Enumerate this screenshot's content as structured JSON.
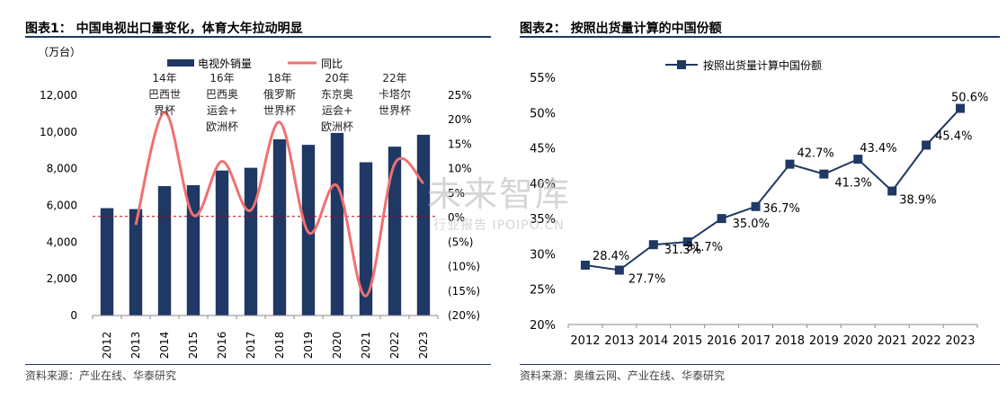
{
  "left": {
    "title": "图表1：  中国电视出口量变化，体育大年拉动明显",
    "unit_label": "（万台）",
    "source": "资料来源：产业在线、华泰研究",
    "legend_bar": "电视外销量",
    "legend_line": "同比",
    "annotations": [
      "14年\n巴西世\n界杯",
      "16年\n巴西奥\n运会+\n欧洲杯",
      "18年\n俄罗斯\n世界杯",
      "20年\n东京奥\n运会+\n欧洲杯",
      "22年\n卡塔尔\n世界杯"
    ],
    "colors": {
      "bar": "#1f3864",
      "line": "#f07070",
      "refline": "#c00000"
    }
  },
  "right": {
    "title": "图表2：  按照出货量计算的中国份额",
    "source": "资料来源：奥维云网、产业在线、华泰研究",
    "legend": "按照出货量计算中国份额",
    "colors": {
      "line": "#1f3864"
    }
  },
  "watermark": {
    "line1": "未来智库",
    "line2": "行业报告 IPOIPO.CN"
  },
  "chart_data": [
    {
      "type": "bar",
      "categories": [
        "2012",
        "2013",
        "2014",
        "2015",
        "2016",
        "2017",
        "2018",
        "2019",
        "2020",
        "2021",
        "2022",
        "2023"
      ],
      "series": [
        {
          "name": "电视外销量",
          "values": [
            5850,
            5800,
            7050,
            7100,
            7900,
            8050,
            9600,
            9300,
            9950,
            8350,
            9200,
            9850
          ]
        },
        {
          "name": "同比",
          "values": [
            null,
            -1.5,
            21.5,
            0.5,
            11.5,
            1.5,
            19.5,
            -3.0,
            6.5,
            -16.0,
            11.0,
            7.0
          ]
        }
      ],
      "ylim": [
        0,
        12000
      ],
      "y2lim": [
        -20,
        25
      ],
      "yticks": [
        "0",
        "2,000",
        "4,000",
        "6,000",
        "8,000",
        "10,000",
        "12,000"
      ],
      "y2ticks": [
        "(20%)",
        "(15%)",
        "(10%)",
        "(5%)",
        "0%",
        "5%",
        "10%",
        "15%",
        "20%",
        "25%"
      ],
      "refline_value": 5400
    },
    {
      "type": "line",
      "categories": [
        "2012",
        "2013",
        "2014",
        "2015",
        "2016",
        "2017",
        "2018",
        "2019",
        "2020",
        "2021",
        "2022",
        "2023"
      ],
      "series": [
        {
          "name": "按照出货量计算中国份额",
          "values": [
            28.4,
            27.7,
            31.3,
            31.7,
            35.0,
            36.7,
            42.7,
            41.3,
            43.4,
            38.9,
            45.4,
            50.6
          ]
        }
      ],
      "data_labels": [
        "28.4%",
        "27.7%",
        "31.3%",
        "31.7%",
        "35.0%",
        "36.7%",
        "42.7%",
        "41.3%",
        "43.4%",
        "38.9%",
        "45.4%",
        "50.6%"
      ],
      "ylim": [
        20,
        55
      ],
      "yticks": [
        "20%",
        "25%",
        "30%",
        "35%",
        "40%",
        "45%",
        "50%",
        "55%"
      ]
    }
  ]
}
